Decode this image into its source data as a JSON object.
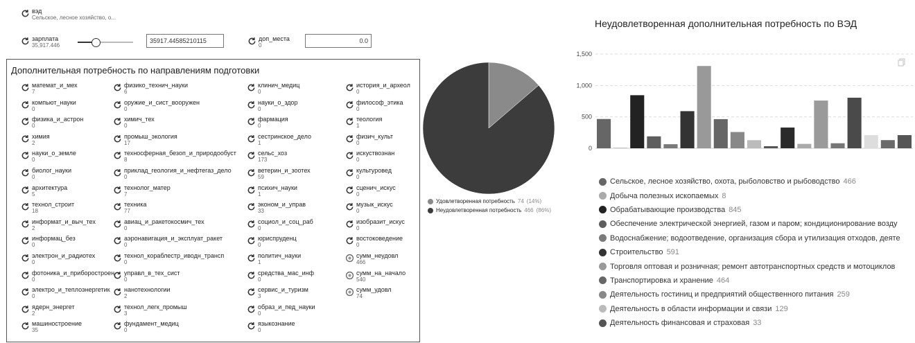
{
  "ved": {
    "name": "вэд",
    "value": "Сельское, лесное хозяйство, о..."
  },
  "zarplata": {
    "name": "зарплата",
    "value": "35,917.446",
    "slider_fraction": 0.33,
    "input_value": "35917.44585210115"
  },
  "dop_mesta": {
    "name": "доп_места",
    "value": "0",
    "input_value": "0.0"
  },
  "panel_title": "Дополнительная потребность по направлениям подготовки",
  "grid": [
    [
      {
        "name": "математ_и_мех",
        "value": "7"
      },
      {
        "name": "физико_технич_науки",
        "value": "6"
      },
      {
        "name": "клинич_медиц",
        "value": "0"
      },
      {
        "name": "история_и_археол",
        "value": "0"
      }
    ],
    [
      {
        "name": "компьют_науки",
        "value": "0"
      },
      {
        "name": "оружие_и_сист_вооружен",
        "value": "0"
      },
      {
        "name": "науки_о_здор",
        "value": "0"
      },
      {
        "name": "философ_этика",
        "value": "0"
      }
    ],
    [
      {
        "name": "физика_и_астрон",
        "value": "0"
      },
      {
        "name": "химич_тех",
        "value": "0"
      },
      {
        "name": "фармация",
        "value": "0"
      },
      {
        "name": "теология",
        "value": "1"
      }
    ],
    [
      {
        "name": "химия",
        "value": "2"
      },
      {
        "name": "промыш_экология",
        "value": "17"
      },
      {
        "name": "сестринское_дело",
        "value": "1"
      },
      {
        "name": "физич_культ",
        "value": "0"
      }
    ],
    [
      {
        "name": "науки_о_земле",
        "value": "0"
      },
      {
        "name": "техносферная_безоп_и_природообуст",
        "value": "8"
      },
      {
        "name": "сельс_хоз",
        "value": "173"
      },
      {
        "name": "искуствознан",
        "value": "0"
      }
    ],
    [
      {
        "name": "биолог_науки",
        "value": "0"
      },
      {
        "name": "приклад_геология_и_нефтегаз_дело",
        "value": "0"
      },
      {
        "name": "ветерин_и_зоотех",
        "value": "59"
      },
      {
        "name": "культуровед",
        "value": "0"
      }
    ],
    [
      {
        "name": "архитектура",
        "value": "5"
      },
      {
        "name": "технолог_матер",
        "value": "7"
      },
      {
        "name": "психич_науки",
        "value": "1"
      },
      {
        "name": "сценич_искус",
        "value": "0"
      }
    ],
    [
      {
        "name": "технол_строит",
        "value": "18"
      },
      {
        "name": "техника",
        "value": "77"
      },
      {
        "name": "эконом_и_управ",
        "value": "33"
      },
      {
        "name": "музык_искус",
        "value": "0"
      }
    ],
    [
      {
        "name": "информат_и_выч_тех",
        "value": "2"
      },
      {
        "name": "авиац_и_ракетокосмич_тех",
        "value": "0"
      },
      {
        "name": "социол_и_соц_раб",
        "value": "0"
      },
      {
        "name": "изобразит_искус",
        "value": "0"
      }
    ],
    [
      {
        "name": "информац_без",
        "value": "0"
      },
      {
        "name": "аэронавигация_и_эксплуат_ракет",
        "value": "0"
      },
      {
        "name": "юриспруденц",
        "value": "0"
      },
      {
        "name": "востоковедение",
        "value": "0"
      }
    ],
    [
      {
        "name": "электрон_и_радиотех",
        "value": "0"
      },
      {
        "name": "технол_кораблестр_иводн_трансп",
        "value": "0"
      },
      {
        "name": "политич_науки",
        "value": "1"
      },
      {
        "name": "сумм_неудовл",
        "value": "466"
      }
    ],
    [
      {
        "name": "фотоника_и_приборостроен",
        "value": "0"
      },
      {
        "name": "управл_в_тех_сист",
        "value": "0"
      },
      {
        "name": "средства_мас_инф",
        "value": "0"
      },
      {
        "name": "сумм_на_начало",
        "value": "540"
      }
    ],
    [
      {
        "name": "электро_и_теплоэнергетик",
        "value": "0"
      },
      {
        "name": "нанотехнологии",
        "value": "2"
      },
      {
        "name": "сервис_и_туризм",
        "value": "3"
      },
      {
        "name": "сумм_удовл",
        "value": "74"
      }
    ],
    [
      {
        "name": "ядерн_энергет",
        "value": "2"
      },
      {
        "name": "технол_легк_промыш",
        "value": "3"
      },
      {
        "name": "образ_и_пед_науки",
        "value": "0"
      }
    ],
    [
      {
        "name": "машиностроение",
        "value": "35"
      },
      {
        "name": "фундамент_медиц",
        "value": "0"
      },
      {
        "name": "языкознание",
        "value": "0"
      }
    ]
  ],
  "pie_legend": [
    {
      "label": "Удовлетворенная потребность",
      "value": "74",
      "pct": "(14%)",
      "color": "#8a8a8a"
    },
    {
      "label": "Неудовлетворенная потребность",
      "value": "466",
      "pct": "(86%)",
      "color": "#3c3c3c"
    }
  ],
  "bar_title": "Неудовлетворенная дополнительная потребность по ВЭД",
  "ved_legend": [
    {
      "label": "Сельское, лесное хозяйство, охота, рыболовство и рыбоводство",
      "value": "466",
      "color": "#666666"
    },
    {
      "label": "Добыча полезных ископаемых",
      "value": "8",
      "color": "#aaaaaa"
    },
    {
      "label": "Обрабатывающие производства",
      "value": "845",
      "color": "#222222"
    },
    {
      "label": "Обеспечение электрической энергией, газом и паром; кондиционирование возду",
      "value": "",
      "color": "#5e5e5e"
    },
    {
      "label": "Водоснабжение; водоотведение, организация сбора и утилизация отходов, деяте",
      "value": "",
      "color": "#7a7a7a"
    },
    {
      "label": "Строительство",
      "value": "591",
      "color": "#333333"
    },
    {
      "label": "Торговля оптовая и розничная; ремонт автотранспортных средств и мотоциклов",
      "value": "",
      "color": "#999999"
    },
    {
      "label": "Транспортировка и хранение",
      "value": "464",
      "color": "#666666"
    },
    {
      "label": "Деятельность гостиниц и предприятий общественного питания",
      "value": "259",
      "color": "#888888"
    },
    {
      "label": "Деятельность в области информации и связи",
      "value": "129",
      "color": "#bbbbbb"
    },
    {
      "label": "Деятельность финансовая и страховая",
      "value": "33",
      "color": "#555555"
    }
  ],
  "chart_data": [
    {
      "type": "pie",
      "categories": [
        "Удовлетворенная потребность",
        "Неудовлетворенная потребность"
      ],
      "values": [
        74,
        466
      ],
      "colors": [
        "#8a8a8a",
        "#3c3c3c"
      ]
    },
    {
      "type": "bar",
      "title": "Неудовлетворенная дополнительная потребность по ВЭД",
      "values": [
        466,
        8,
        845,
        190,
        65,
        591,
        1310,
        464,
        259,
        129,
        33,
        330,
        70,
        760,
        80,
        805,
        210,
        130,
        210
      ],
      "colors": [
        "#666666",
        "#aaaaaa",
        "#222222",
        "#5e5e5e",
        "#7a7a7a",
        "#333333",
        "#999999",
        "#666666",
        "#888888",
        "#bbbbbb",
        "#555555",
        "#2a2a2a",
        "#aaaaaa",
        "#9a9a9a",
        "#777777",
        "#4a4a4a",
        "#dddddd",
        "#6a6a6a",
        "#555555"
      ],
      "yticks": [
        "0",
        "500",
        "1,000",
        "1,500"
      ],
      "ylim": [
        0,
        1500
      ],
      "grid": true
    }
  ]
}
